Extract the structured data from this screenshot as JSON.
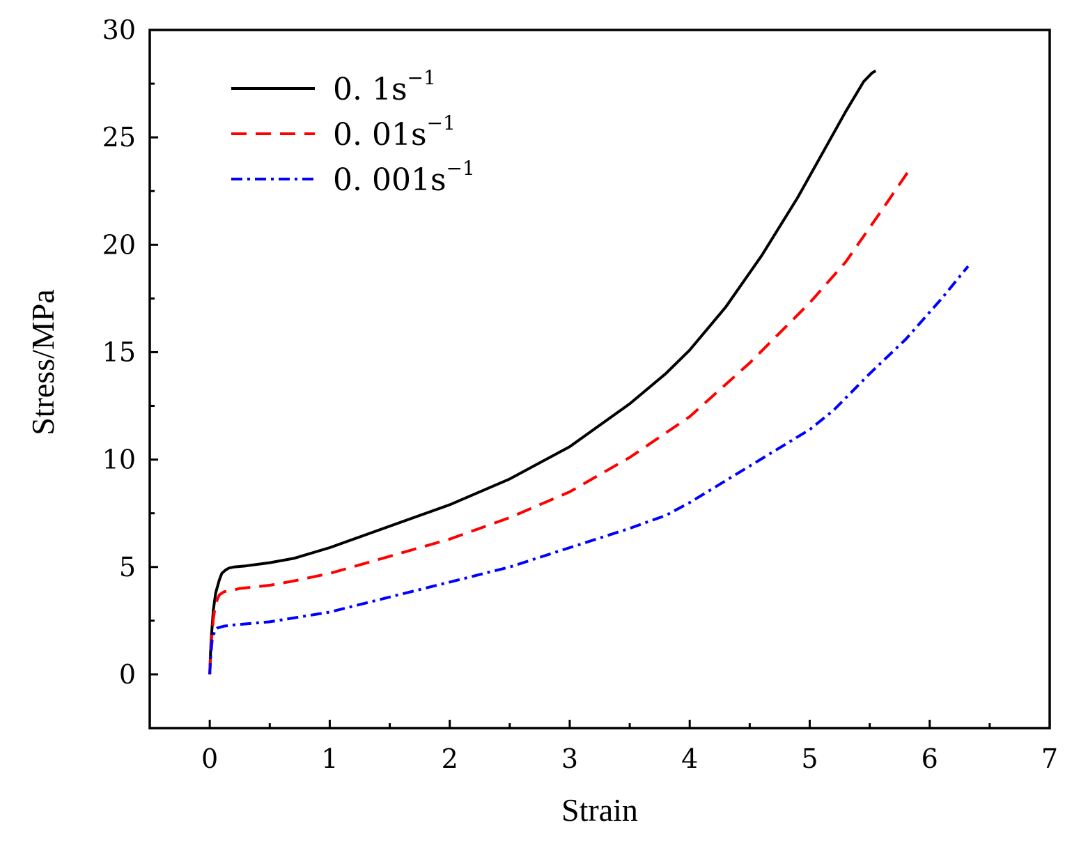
{
  "chart_data": {
    "type": "line",
    "title": "",
    "xlabel": "Strain",
    "ylabel": "Stress/MPa",
    "xlim": [
      -0.5,
      7
    ],
    "ylim": [
      -2.5,
      30
    ],
    "xticks": [
      0,
      1,
      2,
      3,
      4,
      5,
      6,
      7
    ],
    "yticks": [
      0,
      5,
      10,
      15,
      20,
      25,
      30
    ],
    "xtick_labels": [
      "0",
      "1",
      "2",
      "3",
      "4",
      "5",
      "6",
      "7"
    ],
    "ytick_labels": [
      "0",
      "5",
      "10",
      "15",
      "20",
      "25",
      "30"
    ],
    "grid": false,
    "legend_position": "top-left",
    "series": [
      {
        "name": "0. 1s",
        "superscript": "−1",
        "color": "#000000",
        "dash": "solid",
        "x": [
          0,
          0.01,
          0.03,
          0.05,
          0.08,
          0.1,
          0.13,
          0.16,
          0.2,
          0.3,
          0.5,
          0.7,
          1.0,
          1.3,
          1.6,
          2.0,
          2.5,
          3.0,
          3.5,
          3.8,
          4.0,
          4.3,
          4.6,
          4.9,
          5.1,
          5.3,
          5.45,
          5.52,
          5.55
        ],
        "y": [
          0,
          1.5,
          3.0,
          3.8,
          4.4,
          4.7,
          4.85,
          4.95,
          5.0,
          5.05,
          5.2,
          5.4,
          5.9,
          6.5,
          7.1,
          7.9,
          9.1,
          10.6,
          12.6,
          14.0,
          15.1,
          17.1,
          19.5,
          22.2,
          24.2,
          26.2,
          27.6,
          28.0,
          28.1
        ]
      },
      {
        "name": "0. 01s",
        "superscript": "−1",
        "color": "#ff0000",
        "dash": "dashed",
        "x": [
          0,
          0.01,
          0.03,
          0.05,
          0.08,
          0.12,
          0.18,
          0.25,
          0.5,
          0.7,
          1.0,
          1.5,
          2.0,
          2.5,
          3.0,
          3.5,
          4.0,
          4.5,
          5.0,
          5.3,
          5.6,
          5.82
        ],
        "y": [
          0,
          1.3,
          2.6,
          3.3,
          3.7,
          3.85,
          3.9,
          4.0,
          4.15,
          4.35,
          4.7,
          5.5,
          6.3,
          7.3,
          8.5,
          10.1,
          12.0,
          14.5,
          17.3,
          19.2,
          21.6,
          23.4
        ]
      },
      {
        "name": "0. 001s",
        "superscript": "−1",
        "color": "#0000ff",
        "dash": "dashdot",
        "x": [
          0,
          0.01,
          0.02,
          0.04,
          0.06,
          0.09,
          0.12,
          0.2,
          0.5,
          1.0,
          1.5,
          2.0,
          2.5,
          3.0,
          3.5,
          3.8,
          4.0,
          4.5,
          5.0,
          5.2,
          5.5,
          5.8,
          6.1,
          6.32
        ],
        "y": [
          0,
          1.0,
          1.6,
          2.0,
          2.15,
          2.2,
          2.25,
          2.3,
          2.45,
          2.9,
          3.6,
          4.3,
          5.0,
          5.9,
          6.8,
          7.4,
          8.0,
          9.7,
          11.4,
          12.3,
          14.0,
          15.6,
          17.5,
          19.0
        ]
      }
    ]
  }
}
